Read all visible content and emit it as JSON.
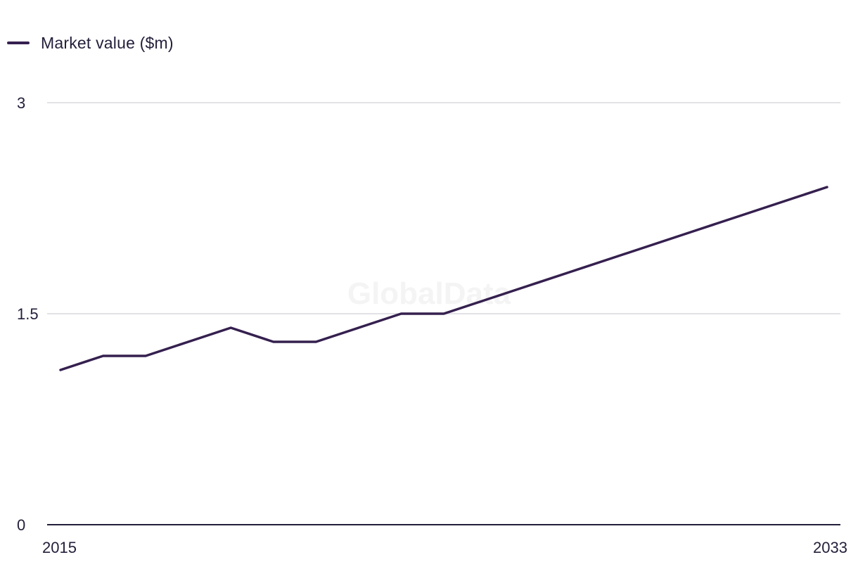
{
  "legend": {
    "label": "Market value ($m)"
  },
  "watermark": "GlobalData",
  "colors": {
    "series": "#35204f",
    "grid": "#d9d9dd",
    "axis": "#231f3a",
    "text": "#231f3a"
  },
  "chart_data": {
    "type": "line",
    "title": "",
    "xlabel": "",
    "ylabel": "",
    "x": [
      2015,
      2016,
      2017,
      2018,
      2019,
      2020,
      2021,
      2022,
      2023,
      2024,
      2025,
      2026,
      2027,
      2028,
      2029,
      2030,
      2031,
      2032,
      2033
    ],
    "series": [
      {
        "name": "Market value ($m)",
        "values": [
          1.1,
          1.2,
          1.2,
          1.3,
          1.4,
          1.3,
          1.3,
          1.4,
          1.5,
          1.5,
          1.6,
          1.7,
          1.8,
          1.9,
          2.0,
          2.1,
          2.2,
          2.3,
          2.4
        ]
      }
    ],
    "ylim": [
      0,
      3
    ],
    "yticks": [
      "0",
      "1.5",
      "3"
    ],
    "yticks_values": [
      0,
      1.5,
      3
    ],
    "xticks": [
      "2015",
      "2033"
    ],
    "grid": true,
    "legend_position": "top-left"
  }
}
